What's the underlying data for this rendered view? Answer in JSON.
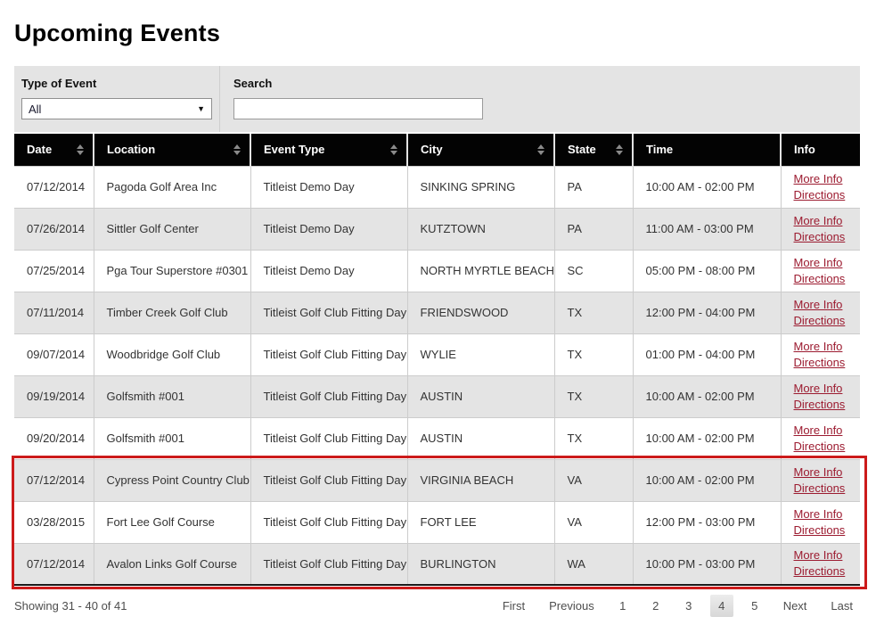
{
  "page": {
    "title": "Upcoming Events"
  },
  "filters": {
    "type_label": "Type of Event",
    "type_value": "All",
    "search_label": "Search",
    "search_value": ""
  },
  "table": {
    "columns": [
      {
        "label": "Date",
        "sortable": true,
        "width": 89
      },
      {
        "label": "Location",
        "sortable": true,
        "width": 176
      },
      {
        "label": "Event Type",
        "sortable": true,
        "width": 176
      },
      {
        "label": "City",
        "sortable": true,
        "width": 165
      },
      {
        "label": "State",
        "sortable": true,
        "width": 88
      },
      {
        "label": "Time",
        "sortable": false,
        "width": 166
      },
      {
        "label": "Info",
        "sortable": false,
        "width": 89
      }
    ],
    "link_labels": {
      "more_info": "More Info",
      "directions": "Directions"
    },
    "rows": [
      {
        "date": "07/12/2014",
        "location": "Pagoda Golf Area Inc",
        "event_type": "Titleist Demo Day",
        "city": "SINKING SPRING",
        "state": "PA",
        "time": "10:00 AM - 02:00 PM"
      },
      {
        "date": "07/26/2014",
        "location": "Sittler Golf Center",
        "event_type": "Titleist Demo Day",
        "city": "KUTZTOWN",
        "state": "PA",
        "time": "11:00 AM - 03:00 PM"
      },
      {
        "date": "07/25/2014",
        "location": "Pga Tour Superstore #0301",
        "event_type": "Titleist Demo Day",
        "city": "NORTH MYRTLE BEACH",
        "state": "SC",
        "time": "05:00 PM - 08:00 PM"
      },
      {
        "date": "07/11/2014",
        "location": "Timber Creek Golf Club",
        "event_type": "Titleist Golf Club Fitting Day",
        "city": "FRIENDSWOOD",
        "state": "TX",
        "time": "12:00 PM - 04:00 PM"
      },
      {
        "date": "09/07/2014",
        "location": "Woodbridge Golf Club",
        "event_type": "Titleist Golf Club Fitting Day",
        "city": "WYLIE",
        "state": "TX",
        "time": "01:00 PM - 04:00 PM"
      },
      {
        "date": "09/19/2014",
        "location": "Golfsmith #001",
        "event_type": "Titleist Golf Club Fitting Day",
        "city": "AUSTIN",
        "state": "TX",
        "time": "10:00 AM - 02:00 PM"
      },
      {
        "date": "09/20/2014",
        "location": "Golfsmith #001",
        "event_type": "Titleist Golf Club Fitting Day",
        "city": "AUSTIN",
        "state": "TX",
        "time": "10:00 AM - 02:00 PM"
      },
      {
        "date": "07/12/2014",
        "location": "Cypress Point Country Club",
        "event_type": "Titleist Golf Club Fitting Day",
        "city": "VIRGINIA BEACH",
        "state": "VA",
        "time": "10:00 AM - 02:00 PM"
      },
      {
        "date": "03/28/2015",
        "location": "Fort Lee Golf Course",
        "event_type": "Titleist Golf Club Fitting Day",
        "city": "FORT LEE",
        "state": "VA",
        "time": "12:00 PM - 03:00 PM"
      },
      {
        "date": "07/12/2014",
        "location": "Avalon Links Golf Course",
        "event_type": "Titleist Golf Club Fitting Day",
        "city": "BURLINGTON",
        "state": "WA",
        "time": "10:00 PM - 03:00 PM"
      }
    ]
  },
  "pagination": {
    "summary": "Showing 31 - 40 of 41",
    "first": "First",
    "previous": "Previous",
    "pages": [
      "1",
      "2",
      "3",
      "4",
      "5"
    ],
    "current_page": "4",
    "next": "Next",
    "last": "Last"
  },
  "colors": {
    "link": "#9c1b30",
    "header_bg": "#030303",
    "row_alt": "#e4e4e4",
    "annotation": "#cc1b1b"
  }
}
